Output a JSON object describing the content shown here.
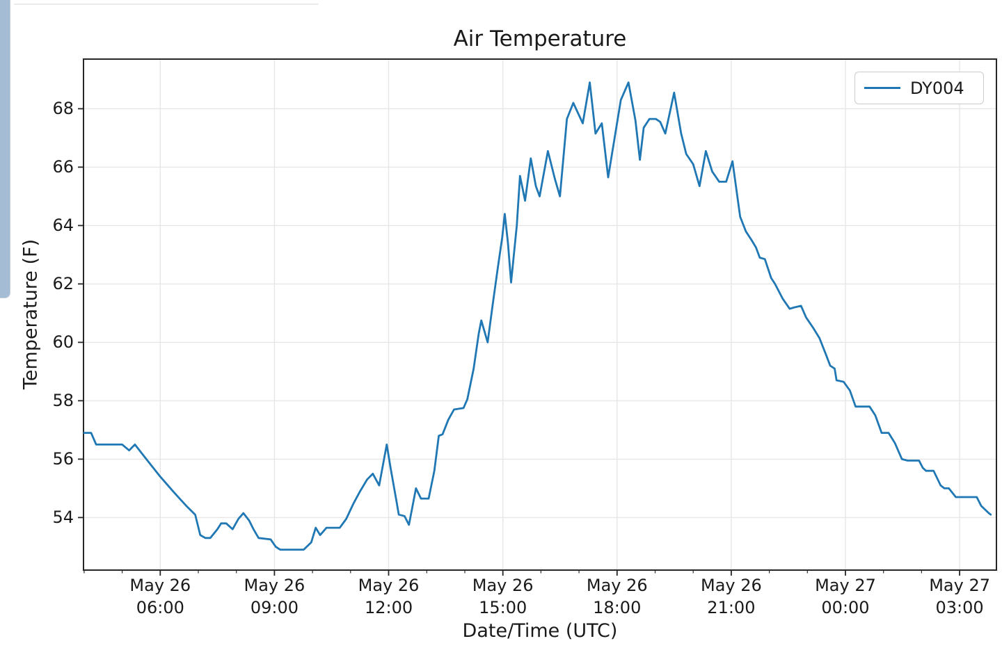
{
  "window": {
    "background_color": "#ffffff",
    "scrollbar_color": "#a4bdd5",
    "top_edge_color": "#ebebeb"
  },
  "chart_data": {
    "type": "line",
    "title": "Air Temperature",
    "xlabel": "Date/Time (UTC)",
    "ylabel": "Temperature (F)",
    "grid": true,
    "grid_color": "#e6e6e6",
    "axis_color": "#262626",
    "text_color": "#1a1a1a",
    "legend_position": "upper right",
    "legend": {
      "entries": [
        {
          "label": "DY004",
          "color": "#1f77b4"
        }
      ]
    },
    "x_unit": "minutes since May 26 00:00 UTC",
    "x_domain_minutes": [
      239,
      1678
    ],
    "y_domain": [
      52.2,
      69.7
    ],
    "x_major_ticks": [
      {
        "minutes": 360,
        "label_line1": "May 26",
        "label_line2": "06:00"
      },
      {
        "minutes": 540,
        "label_line1": "May 26",
        "label_line2": "09:00"
      },
      {
        "minutes": 720,
        "label_line1": "May 26",
        "label_line2": "12:00"
      },
      {
        "minutes": 900,
        "label_line1": "May 26",
        "label_line2": "15:00"
      },
      {
        "minutes": 1080,
        "label_line1": "May 26",
        "label_line2": "18:00"
      },
      {
        "minutes": 1260,
        "label_line1": "May 26",
        "label_line2": "21:00"
      },
      {
        "minutes": 1440,
        "label_line1": "May 27",
        "label_line2": "00:00"
      },
      {
        "minutes": 1620,
        "label_line1": "May 27",
        "label_line2": "03:00"
      }
    ],
    "x_minor_tick_step_minutes": 60,
    "y_major_ticks": [
      54,
      56,
      58,
      60,
      62,
      64,
      66,
      68
    ],
    "series": [
      {
        "name": "DY004",
        "color": "#1f77b4",
        "points": [
          [
            240,
            56.9
          ],
          [
            251,
            56.9
          ],
          [
            259,
            56.5
          ],
          [
            300,
            56.5
          ],
          [
            311,
            56.3
          ],
          [
            320,
            56.5
          ],
          [
            338,
            56.0
          ],
          [
            360,
            55.4
          ],
          [
            380,
            54.9
          ],
          [
            401,
            54.4
          ],
          [
            415,
            54.1
          ],
          [
            423,
            53.4
          ],
          [
            431,
            53.3
          ],
          [
            439,
            53.3
          ],
          [
            450,
            53.6
          ],
          [
            456,
            53.8
          ],
          [
            464,
            53.8
          ],
          [
            474,
            53.6
          ],
          [
            483,
            53.95
          ],
          [
            491,
            54.15
          ],
          [
            500,
            53.9
          ],
          [
            507,
            53.6
          ],
          [
            515,
            53.3
          ],
          [
            534,
            53.25
          ],
          [
            542,
            53.0
          ],
          [
            549,
            52.9
          ],
          [
            586,
            52.9
          ],
          [
            598,
            53.15
          ],
          [
            605,
            53.65
          ],
          [
            612,
            53.4
          ],
          [
            622,
            53.65
          ],
          [
            643,
            53.65
          ],
          [
            653,
            53.95
          ],
          [
            665,
            54.5
          ],
          [
            675,
            54.9
          ],
          [
            686,
            55.3
          ],
          [
            695,
            55.5
          ],
          [
            705,
            55.1
          ],
          [
            717,
            56.5
          ],
          [
            723,
            55.7
          ],
          [
            732,
            54.6
          ],
          [
            736,
            54.1
          ],
          [
            745,
            54.05
          ],
          [
            752,
            53.75
          ],
          [
            763,
            55.0
          ],
          [
            771,
            54.65
          ],
          [
            783,
            54.65
          ],
          [
            792,
            55.6
          ],
          [
            799,
            56.8
          ],
          [
            805,
            56.85
          ],
          [
            814,
            57.35
          ],
          [
            823,
            57.7
          ],
          [
            838,
            57.75
          ],
          [
            844,
            58.05
          ],
          [
            854,
            59.1
          ],
          [
            862,
            60.3
          ],
          [
            866,
            60.75
          ],
          [
            876,
            60.0
          ],
          [
            884,
            61.3
          ],
          [
            892,
            62.55
          ],
          [
            899,
            63.6
          ],
          [
            903,
            64.4
          ],
          [
            908,
            63.4
          ],
          [
            913,
            62.05
          ],
          [
            922,
            64.0
          ],
          [
            927,
            65.7
          ],
          [
            935,
            64.85
          ],
          [
            944,
            66.3
          ],
          [
            952,
            65.35
          ],
          [
            958,
            65.0
          ],
          [
            971,
            66.55
          ],
          [
            982,
            65.6
          ],
          [
            990,
            65.0
          ],
          [
            1001,
            67.65
          ],
          [
            1011,
            68.2
          ],
          [
            1026,
            67.5
          ],
          [
            1037,
            68.9
          ],
          [
            1046,
            67.15
          ],
          [
            1056,
            67.5
          ],
          [
            1066,
            65.65
          ],
          [
            1086,
            68.3
          ],
          [
            1098,
            68.9
          ],
          [
            1109,
            67.6
          ],
          [
            1116,
            66.25
          ],
          [
            1122,
            67.35
          ],
          [
            1131,
            67.65
          ],
          [
            1141,
            67.65
          ],
          [
            1148,
            67.55
          ],
          [
            1156,
            67.15
          ],
          [
            1170,
            68.55
          ],
          [
            1181,
            67.15
          ],
          [
            1189,
            66.45
          ],
          [
            1200,
            66.1
          ],
          [
            1210,
            65.35
          ],
          [
            1220,
            66.55
          ],
          [
            1230,
            65.85
          ],
          [
            1241,
            65.5
          ],
          [
            1252,
            65.5
          ],
          [
            1262,
            66.2
          ],
          [
            1274,
            64.3
          ],
          [
            1283,
            63.8
          ],
          [
            1292,
            63.5
          ],
          [
            1299,
            63.25
          ],
          [
            1305,
            62.9
          ],
          [
            1313,
            62.85
          ],
          [
            1323,
            62.2
          ],
          [
            1329,
            62.0
          ],
          [
            1341,
            61.5
          ],
          [
            1352,
            61.15
          ],
          [
            1360,
            61.2
          ],
          [
            1370,
            61.25
          ],
          [
            1378,
            60.85
          ],
          [
            1389,
            60.5
          ],
          [
            1399,
            60.15
          ],
          [
            1409,
            59.6
          ],
          [
            1416,
            59.2
          ],
          [
            1423,
            59.1
          ],
          [
            1426,
            58.7
          ],
          [
            1437,
            58.65
          ],
          [
            1447,
            58.35
          ],
          [
            1456,
            57.8
          ],
          [
            1478,
            57.8
          ],
          [
            1487,
            57.5
          ],
          [
            1497,
            56.9
          ],
          [
            1508,
            56.9
          ],
          [
            1518,
            56.55
          ],
          [
            1529,
            56.0
          ],
          [
            1538,
            55.95
          ],
          [
            1556,
            55.95
          ],
          [
            1562,
            55.7
          ],
          [
            1567,
            55.6
          ],
          [
            1579,
            55.6
          ],
          [
            1590,
            55.1
          ],
          [
            1596,
            55.0
          ],
          [
            1603,
            55.0
          ],
          [
            1614,
            54.7
          ],
          [
            1647,
            54.7
          ],
          [
            1654,
            54.4
          ],
          [
            1666,
            54.15
          ],
          [
            1669,
            54.1
          ]
        ]
      }
    ]
  }
}
